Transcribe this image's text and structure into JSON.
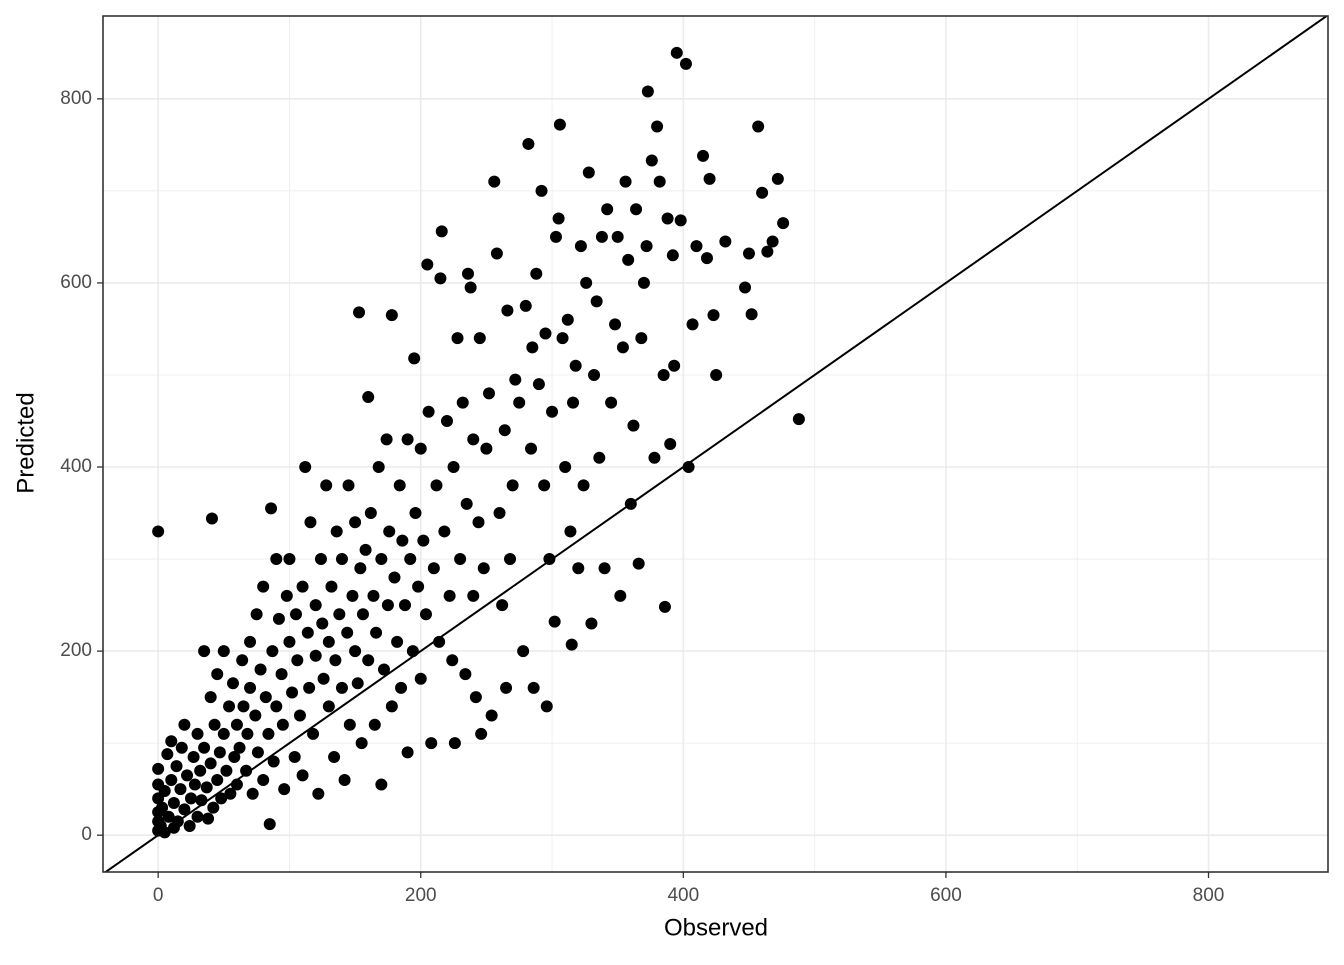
{
  "chart_data": {
    "type": "scatter",
    "x_label": "Observed",
    "y_label": "Predicted",
    "color": "#000000",
    "xlim": [
      -42,
      891
    ],
    "ylim": [
      -40,
      890
    ],
    "xticks": [
      0,
      200,
      400,
      600,
      800
    ],
    "yticks": [
      0,
      200,
      400,
      600,
      800
    ],
    "x_minor_breaks": [
      100,
      300,
      500,
      700
    ],
    "y_minor_breaks": [
      100,
      300,
      500,
      700
    ],
    "grid": true,
    "abline": {
      "intercept": 0,
      "slope": 1
    },
    "x": [
      0,
      0,
      0,
      0,
      0,
      0,
      2,
      3,
      5,
      5,
      7,
      8,
      10,
      10,
      12,
      12,
      14,
      15,
      17,
      18,
      20,
      20,
      22,
      24,
      25,
      27,
      28,
      30,
      30,
      32,
      33,
      35,
      35,
      37,
      38,
      40,
      40,
      42,
      43,
      45,
      45,
      47,
      48,
      50,
      50,
      52,
      54,
      55,
      57,
      58,
      60,
      60,
      62,
      64,
      65,
      67,
      68,
      70,
      70,
      72,
      74,
      75,
      76,
      78,
      80,
      80,
      82,
      84,
      85,
      86,
      87,
      88,
      90,
      90,
      92,
      94,
      95,
      96,
      98,
      100,
      100,
      102,
      104,
      105,
      106,
      108,
      110,
      110,
      112,
      114,
      115,
      116,
      118,
      120,
      120,
      122,
      124,
      125,
      126,
      128,
      130,
      130,
      132,
      134,
      135,
      136,
      138,
      140,
      140,
      142,
      144,
      145,
      146,
      148,
      150,
      150,
      152,
      153,
      154,
      155,
      156,
      158,
      160,
      160,
      162,
      164,
      165,
      166,
      168,
      170,
      170,
      172,
      174,
      175,
      176,
      178,
      178,
      180,
      182,
      184,
      185,
      186,
      188,
      190,
      190,
      192,
      194,
      195,
      196,
      198,
      200,
      200,
      202,
      204,
      205,
      206,
      208,
      210,
      212,
      214,
      215,
      216,
      218,
      220,
      222,
      224,
      225,
      226,
      228,
      230,
      232,
      234,
      235,
      236,
      238,
      240,
      240,
      242,
      244,
      245,
      246,
      248,
      250,
      252,
      254,
      256,
      258,
      260,
      262,
      264,
      265,
      266,
      268,
      270,
      272,
      275,
      278,
      280,
      282,
      284,
      285,
      286,
      288,
      290,
      292,
      294,
      295,
      296,
      298,
      300,
      302,
      303,
      305,
      306,
      308,
      310,
      312,
      314,
      315,
      316,
      318,
      320,
      322,
      324,
      326,
      328,
      330,
      332,
      334,
      336,
      338,
      340,
      342,
      345,
      348,
      350,
      352,
      354,
      356,
      358,
      360,
      362,
      364,
      366,
      368,
      370,
      372,
      373,
      376,
      378,
      380,
      382,
      385,
      386,
      388,
      390,
      392,
      393,
      395,
      398,
      402,
      404,
      407,
      410,
      415,
      418,
      420,
      423,
      425,
      432,
      447,
      450,
      452,
      457,
      460,
      464,
      468,
      472,
      476,
      488,
      0,
      41
    ],
    "y": [
      5,
      15,
      25,
      40,
      55,
      72,
      10,
      30,
      3,
      48,
      88,
      20,
      60,
      102,
      8,
      35,
      75,
      15,
      50,
      95,
      28,
      120,
      65,
      10,
      40,
      85,
      55,
      20,
      110,
      70,
      38,
      200,
      95,
      52,
      18,
      150,
      78,
      30,
      120,
      60,
      175,
      90,
      40,
      200,
      110,
      70,
      140,
      45,
      165,
      85,
      120,
      55,
      95,
      190,
      140,
      70,
      110,
      210,
      160,
      45,
      130,
      240,
      90,
      180,
      60,
      270,
      150,
      110,
      12,
      355,
      200,
      80,
      140,
      300,
      235,
      175,
      120,
      50,
      260,
      210,
      300,
      155,
      85,
      240,
      190,
      130,
      270,
      65,
      400,
      220,
      160,
      340,
      110,
      250,
      195,
      45,
      300,
      230,
      170,
      380,
      210,
      140,
      270,
      85,
      190,
      330,
      240,
      160,
      300,
      60,
      220,
      380,
      120,
      260,
      200,
      340,
      165,
      568,
      290,
      100,
      240,
      310,
      476,
      190,
      350,
      260,
      120,
      220,
      400,
      55,
      300,
      180,
      430,
      250,
      330,
      565,
      140,
      280,
      210,
      380,
      160,
      320,
      250,
      430,
      90,
      300,
      200,
      518,
      350,
      270,
      420,
      170,
      320,
      240,
      620,
      460,
      100,
      290,
      380,
      210,
      605,
      656,
      330,
      450,
      260,
      190,
      400,
      100,
      540,
      300,
      470,
      175,
      360,
      610,
      595,
      260,
      430,
      150,
      340,
      540,
      110,
      290,
      420,
      480,
      130,
      710,
      632,
      350,
      250,
      440,
      160,
      570,
      300,
      380,
      495,
      470,
      200,
      575,
      751,
      420,
      530,
      160,
      610,
      490,
      700,
      380,
      545,
      140,
      300,
      460,
      232,
      650,
      670,
      772,
      540,
      400,
      560,
      330,
      207,
      470,
      510,
      290,
      640,
      380,
      600,
      720,
      230,
      500,
      580,
      410,
      650,
      290,
      680,
      470,
      555,
      650,
      260,
      530,
      710,
      625,
      360,
      445,
      680,
      295,
      540,
      600,
      640,
      808,
      733,
      410,
      770,
      710,
      500,
      248,
      670,
      425,
      630,
      510,
      850,
      668,
      838,
      400,
      555,
      640,
      738,
      627,
      713,
      565,
      500,
      645,
      595,
      632,
      566,
      770,
      698,
      634,
      645,
      713,
      665,
      452,
      330,
      344
    ]
  }
}
